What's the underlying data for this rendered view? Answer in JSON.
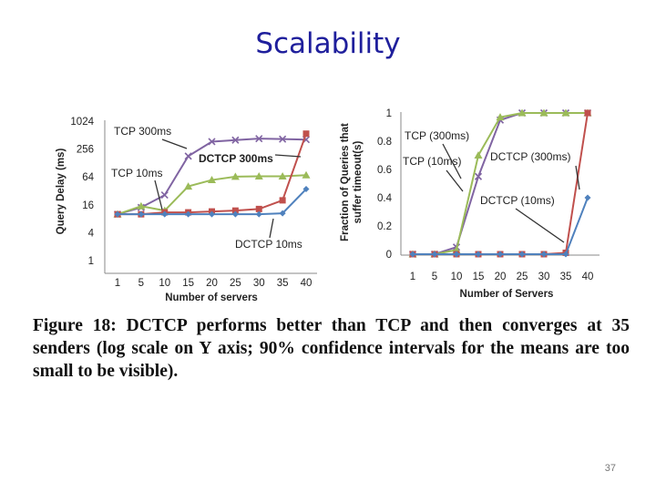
{
  "slide": {
    "title": "Scalability",
    "caption": "Figure 18:  DCTCP performs better than TCP and then converges at 35 senders (log scale on Y axis; 90% confidence intervals for the means are too small to be visible).",
    "page_number": "37"
  },
  "colors": {
    "tcp300": "#8064a2",
    "tcp10": "#9bbb59",
    "dctcp300": "#c0504d",
    "dctcp10": "#4f81bd"
  },
  "chart_data": [
    {
      "type": "line",
      "title": "",
      "xlabel": "Number of servers",
      "ylabel": "Query Delay (ms)",
      "yscale": "log2",
      "ylim": [
        1,
        1024
      ],
      "yticks": [
        "1024",
        "256",
        "64",
        "16",
        "4",
        "1"
      ],
      "categories": [
        "1",
        "5",
        "10",
        "15",
        "20",
        "25",
        "30",
        "35",
        "40"
      ],
      "series": [
        {
          "name": "TCP 300ms",
          "values": [
            10,
            14,
            26,
            180,
            370,
            400,
            430,
            420,
            410
          ]
        },
        {
          "name": "TCP 10ms",
          "values": [
            10,
            15,
            12,
            40,
            55,
            65,
            66,
            66,
            70
          ]
        },
        {
          "name": "DCTCP 300ms",
          "values": [
            10,
            10,
            11,
            11,
            11.5,
            12,
            13,
            20,
            550
          ]
        },
        {
          "name": "DCTCP 10ms",
          "values": [
            10,
            10,
            10,
            10,
            10,
            10,
            10,
            10.5,
            35
          ]
        }
      ],
      "annotations": [
        "TCP 300ms",
        "DCTCP 300ms",
        "TCP 10ms",
        "DCTCP 10ms"
      ]
    },
    {
      "type": "line",
      "title": "",
      "xlabel": "Number of Servers",
      "ylabel": "Fraction of Queries that suffer timeout(s)",
      "ylim": [
        0,
        1
      ],
      "yticks": [
        "1",
        "0.8",
        "0.6",
        "0.4",
        "0.2",
        "0"
      ],
      "categories": [
        "1",
        "5",
        "10",
        "15",
        "20",
        "25",
        "30",
        "35",
        "40"
      ],
      "series": [
        {
          "name": "TCP (300ms)",
          "values": [
            0,
            0,
            0.05,
            0.55,
            0.95,
            1,
            1,
            1,
            1
          ]
        },
        {
          "name": "TCP (10ms)",
          "values": [
            0,
            0,
            0.03,
            0.7,
            0.97,
            1,
            1,
            1,
            1
          ]
        },
        {
          "name": "DCTCP (300ms)",
          "values": [
            0,
            0,
            0,
            0,
            0,
            0,
            0,
            0.01,
            1
          ]
        },
        {
          "name": "DCTCP (10ms)",
          "values": [
            0,
            0,
            0,
            0,
            0,
            0,
            0,
            0,
            0.4
          ]
        }
      ],
      "annotations": [
        "TCP (300ms)",
        "TCP (10ms)",
        "DCTCP (300ms)",
        "DCTCP (10ms)"
      ]
    }
  ]
}
